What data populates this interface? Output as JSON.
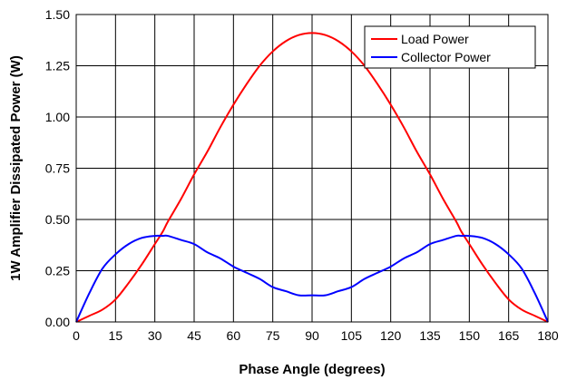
{
  "chart_data": {
    "type": "line",
    "xlabel": "Phase Angle (degrees)",
    "ylabel": "1W Amplifier Dissipated Power (W)",
    "xlim": [
      0,
      180
    ],
    "ylim": [
      0,
      1.5
    ],
    "x_ticks": [
      "0",
      "15",
      "30",
      "45",
      "60",
      "75",
      "90",
      "105",
      "120",
      "135",
      "150",
      "165",
      "180"
    ],
    "y_ticks": [
      "0.00",
      "0.25",
      "0.50",
      "0.75",
      "1.00",
      "1.25",
      "1.50"
    ],
    "grid": true,
    "legend_position": "top-right",
    "x": [
      0,
      5,
      10,
      15,
      20,
      25,
      30,
      33,
      35,
      40,
      45,
      50,
      55,
      60,
      65,
      70,
      75,
      80,
      85,
      90,
      95,
      100,
      105,
      110,
      115,
      120,
      125,
      130,
      135,
      140,
      145,
      147,
      150,
      155,
      160,
      165,
      170,
      175,
      180
    ],
    "series": [
      {
        "name": "Load Power",
        "color": "#ff0000",
        "values": [
          0.0,
          0.03,
          0.06,
          0.11,
          0.19,
          0.28,
          0.38,
          0.44,
          0.49,
          0.6,
          0.72,
          0.83,
          0.95,
          1.06,
          1.16,
          1.25,
          1.32,
          1.37,
          1.4,
          1.41,
          1.4,
          1.37,
          1.32,
          1.25,
          1.16,
          1.06,
          0.95,
          0.83,
          0.72,
          0.6,
          0.49,
          0.44,
          0.38,
          0.28,
          0.19,
          0.11,
          0.06,
          0.03,
          0.0
        ]
      },
      {
        "name": "Collector Power",
        "color": "#0000ff",
        "values": [
          0.0,
          0.14,
          0.26,
          0.33,
          0.38,
          0.41,
          0.42,
          0.42,
          0.42,
          0.4,
          0.38,
          0.34,
          0.31,
          0.27,
          0.24,
          0.21,
          0.17,
          0.15,
          0.13,
          0.13,
          0.13,
          0.15,
          0.17,
          0.21,
          0.24,
          0.27,
          0.31,
          0.34,
          0.38,
          0.4,
          0.42,
          0.42,
          0.42,
          0.41,
          0.38,
          0.33,
          0.26,
          0.14,
          0.0
        ]
      }
    ]
  }
}
